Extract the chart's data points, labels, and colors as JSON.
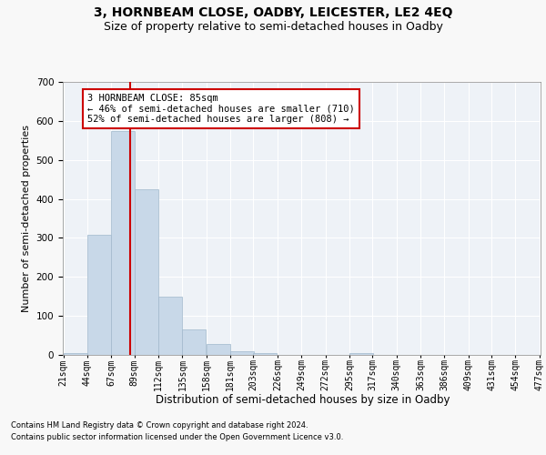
{
  "title": "3, HORNBEAM CLOSE, OADBY, LEICESTER, LE2 4EQ",
  "subtitle": "Size of property relative to semi-detached houses in Oadby",
  "xlabel": "Distribution of semi-detached houses by size in Oadby",
  "ylabel": "Number of semi-detached properties",
  "footer1": "Contains HM Land Registry data © Crown copyright and database right 2024.",
  "footer2": "Contains public sector information licensed under the Open Government Licence v3.0.",
  "bar_edges": [
    21,
    44,
    67,
    89,
    112,
    135,
    158,
    181,
    203,
    226,
    249,
    272,
    295,
    317,
    340,
    363,
    386,
    409,
    431,
    454,
    477
  ],
  "bar_heights": [
    5,
    307,
    575,
    425,
    150,
    65,
    28,
    10,
    5,
    0,
    0,
    0,
    5,
    0,
    0,
    0,
    0,
    0,
    0,
    0
  ],
  "bar_color": "#c8d8e8",
  "bar_edge_color": "#a0b8cc",
  "property_sqm": 85,
  "red_line_color": "#cc0000",
  "annotation_text": "3 HORNBEAM CLOSE: 85sqm\n← 46% of semi-detached houses are smaller (710)\n52% of semi-detached houses are larger (808) →",
  "annotation_box_color": "#ffffff",
  "annotation_border_color": "#cc0000",
  "ylim": [
    0,
    700
  ],
  "yticks": [
    0,
    100,
    200,
    300,
    400,
    500,
    600,
    700
  ],
  "background_color": "#eef2f7",
  "grid_color": "#ffffff",
  "fig_background": "#f8f8f8",
  "title_fontsize": 10,
  "subtitle_fontsize": 9,
  "tick_label_fontsize": 7,
  "ylabel_fontsize": 8,
  "xlabel_fontsize": 8.5,
  "annotation_fontsize": 7.5,
  "footer_fontsize": 6
}
